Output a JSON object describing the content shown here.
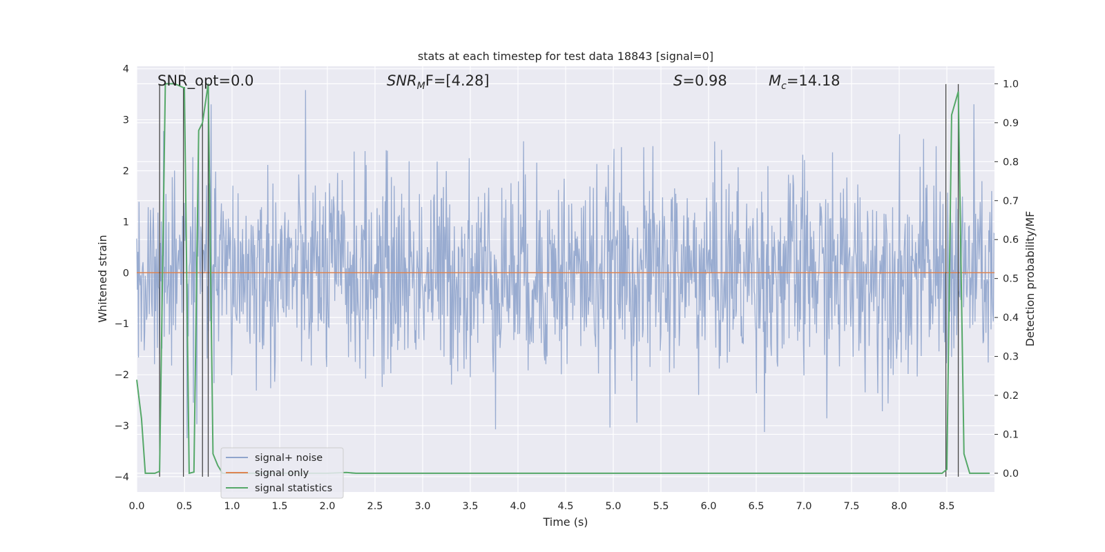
{
  "chart_data": {
    "type": "line",
    "title": "stats at each timestep for test data 18843 [signal=0]",
    "xlabel": "Time (s)",
    "ylabel": "Whitened strain",
    "y2label": "Detection probability/MF",
    "xlim": [
      0,
      9
    ],
    "ylim": [
      -4.3,
      4.05
    ],
    "y2lim": [
      -0.048,
      1.045
    ],
    "grid": true,
    "legend_position": "lower-left",
    "xticks": [
      "0.0",
      "0.5",
      "1.0",
      "1.5",
      "2.0",
      "2.5",
      "3.0",
      "3.5",
      "4.0",
      "4.5",
      "5.0",
      "5.5",
      "6.0",
      "6.5",
      "7.0",
      "7.5",
      "8.0",
      "8.5"
    ],
    "yticks": [
      "4",
      "3",
      "2",
      "1",
      "0",
      "−1",
      "−2",
      "−3",
      "−4"
    ],
    "y2ticks": [
      "1.0",
      "0.9",
      "0.8",
      "0.7",
      "0.6",
      "0.5",
      "0.4",
      "0.3",
      "0.2",
      "0.1",
      "0.0"
    ],
    "annotations": {
      "snr_opt": "SNR_opt=0.0",
      "snr_mf_base": "SNR",
      "snr_mf_sub": "M",
      "snr_mf_rest": "F=[4.28]",
      "s_var": "S",
      "s_rest": "=0.98",
      "mc_base": "M",
      "mc_sub": "c",
      "mc_rest": "=14.18"
    },
    "series": [
      {
        "name": "signal+ noise",
        "color": "#8fa4cc",
        "description": "whitened noisy strain, roughly N(0,1) from t=0 to t=9",
        "std": 1.0,
        "n_points": 1500
      },
      {
        "name": "signal only",
        "color": "#dd8452",
        "values_constant": 0.0
      },
      {
        "name": "signal statistics",
        "color": "#55a868",
        "axis": "right",
        "x": [
          0.0,
          0.05,
          0.09,
          0.19,
          0.24,
          0.3,
          0.4,
          0.49,
          0.5,
          0.55,
          0.6,
          0.65,
          0.69,
          0.75,
          0.8,
          0.85,
          0.9,
          0.95,
          2.0,
          2.2,
          2.3,
          8.45,
          8.5,
          8.55,
          8.62,
          8.68,
          8.74,
          8.79,
          8.95
        ],
        "values": [
          0.24,
          0.14,
          0.0,
          0.0,
          0.005,
          1.0,
          1.0,
          0.99,
          0.99,
          0.0,
          0.003,
          0.88,
          0.9,
          1.0,
          0.05,
          0.02,
          0.0,
          0.0,
          0.0,
          0.002,
          0.0,
          0.0,
          0.01,
          0.92,
          0.98,
          0.05,
          0.0,
          0.0,
          0.0
        ]
      }
    ],
    "vertical_markers": [
      {
        "x": 0.24,
        "y_top": 3.7
      },
      {
        "x": 0.49,
        "y_top": 3.62
      },
      {
        "x": 0.69,
        "y_top": 3.7
      },
      {
        "x": 0.75,
        "y_top": 3.7
      },
      {
        "x": 8.49,
        "y_top": 3.7
      },
      {
        "x": 8.62,
        "y_top": 3.7
      }
    ],
    "colors": {
      "background": "#eaeaf2",
      "grid": "#ffffff",
      "marker_line": "#444444"
    }
  }
}
